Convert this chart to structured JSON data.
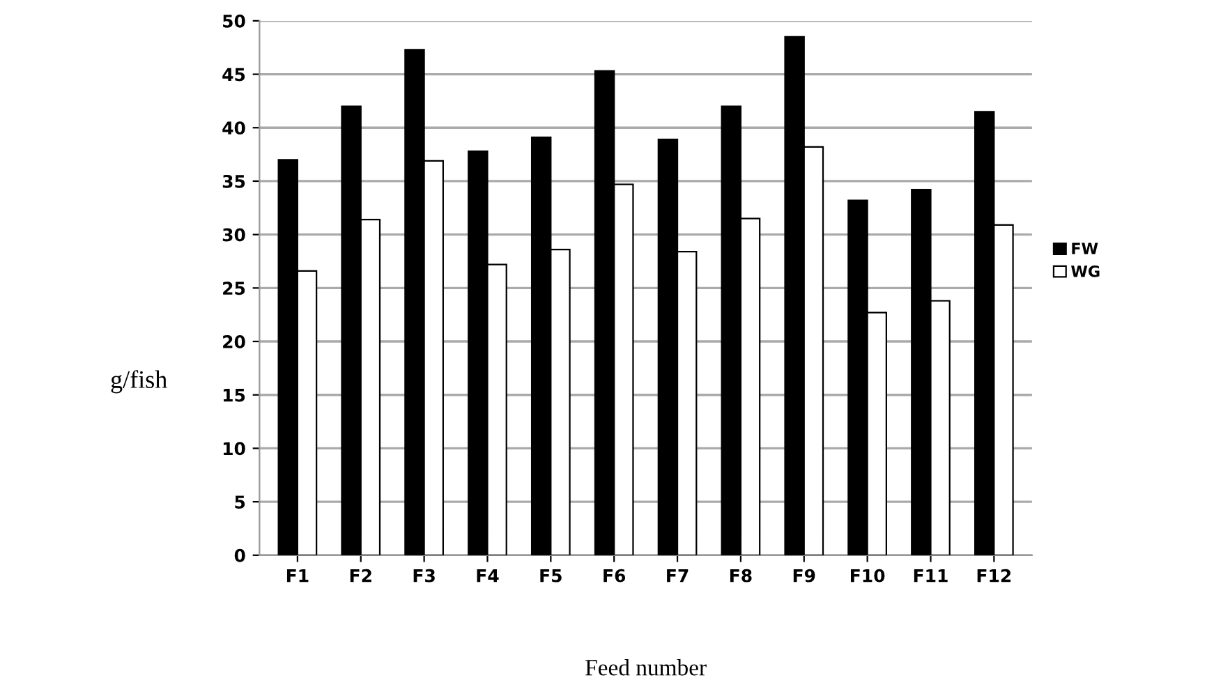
{
  "chart_data": {
    "type": "bar",
    "xlabel": "Feed number",
    "ylabel": "g/fish",
    "categories": [
      "F1",
      "F2",
      "F3",
      "F4",
      "F5",
      "F6",
      "F7",
      "F8",
      "F9",
      "F10",
      "F11",
      "F12"
    ],
    "series": [
      {
        "name": "FW",
        "color": "#000000",
        "values": [
          37,
          42,
          47.3,
          37.8,
          39.1,
          45.3,
          38.9,
          42,
          48.5,
          33.2,
          34.2,
          41.5
        ]
      },
      {
        "name": "WG",
        "color": "#ffffff",
        "values": [
          26.6,
          31.4,
          36.9,
          27.2,
          28.6,
          34.7,
          28.4,
          31.5,
          38.2,
          22.7,
          23.8,
          30.9
        ]
      }
    ],
    "ylim": [
      0,
      50
    ],
    "yticks": [
      0,
      5,
      10,
      15,
      20,
      25,
      30,
      35,
      40,
      45,
      50
    ],
    "grid": "y",
    "legend": "right"
  }
}
